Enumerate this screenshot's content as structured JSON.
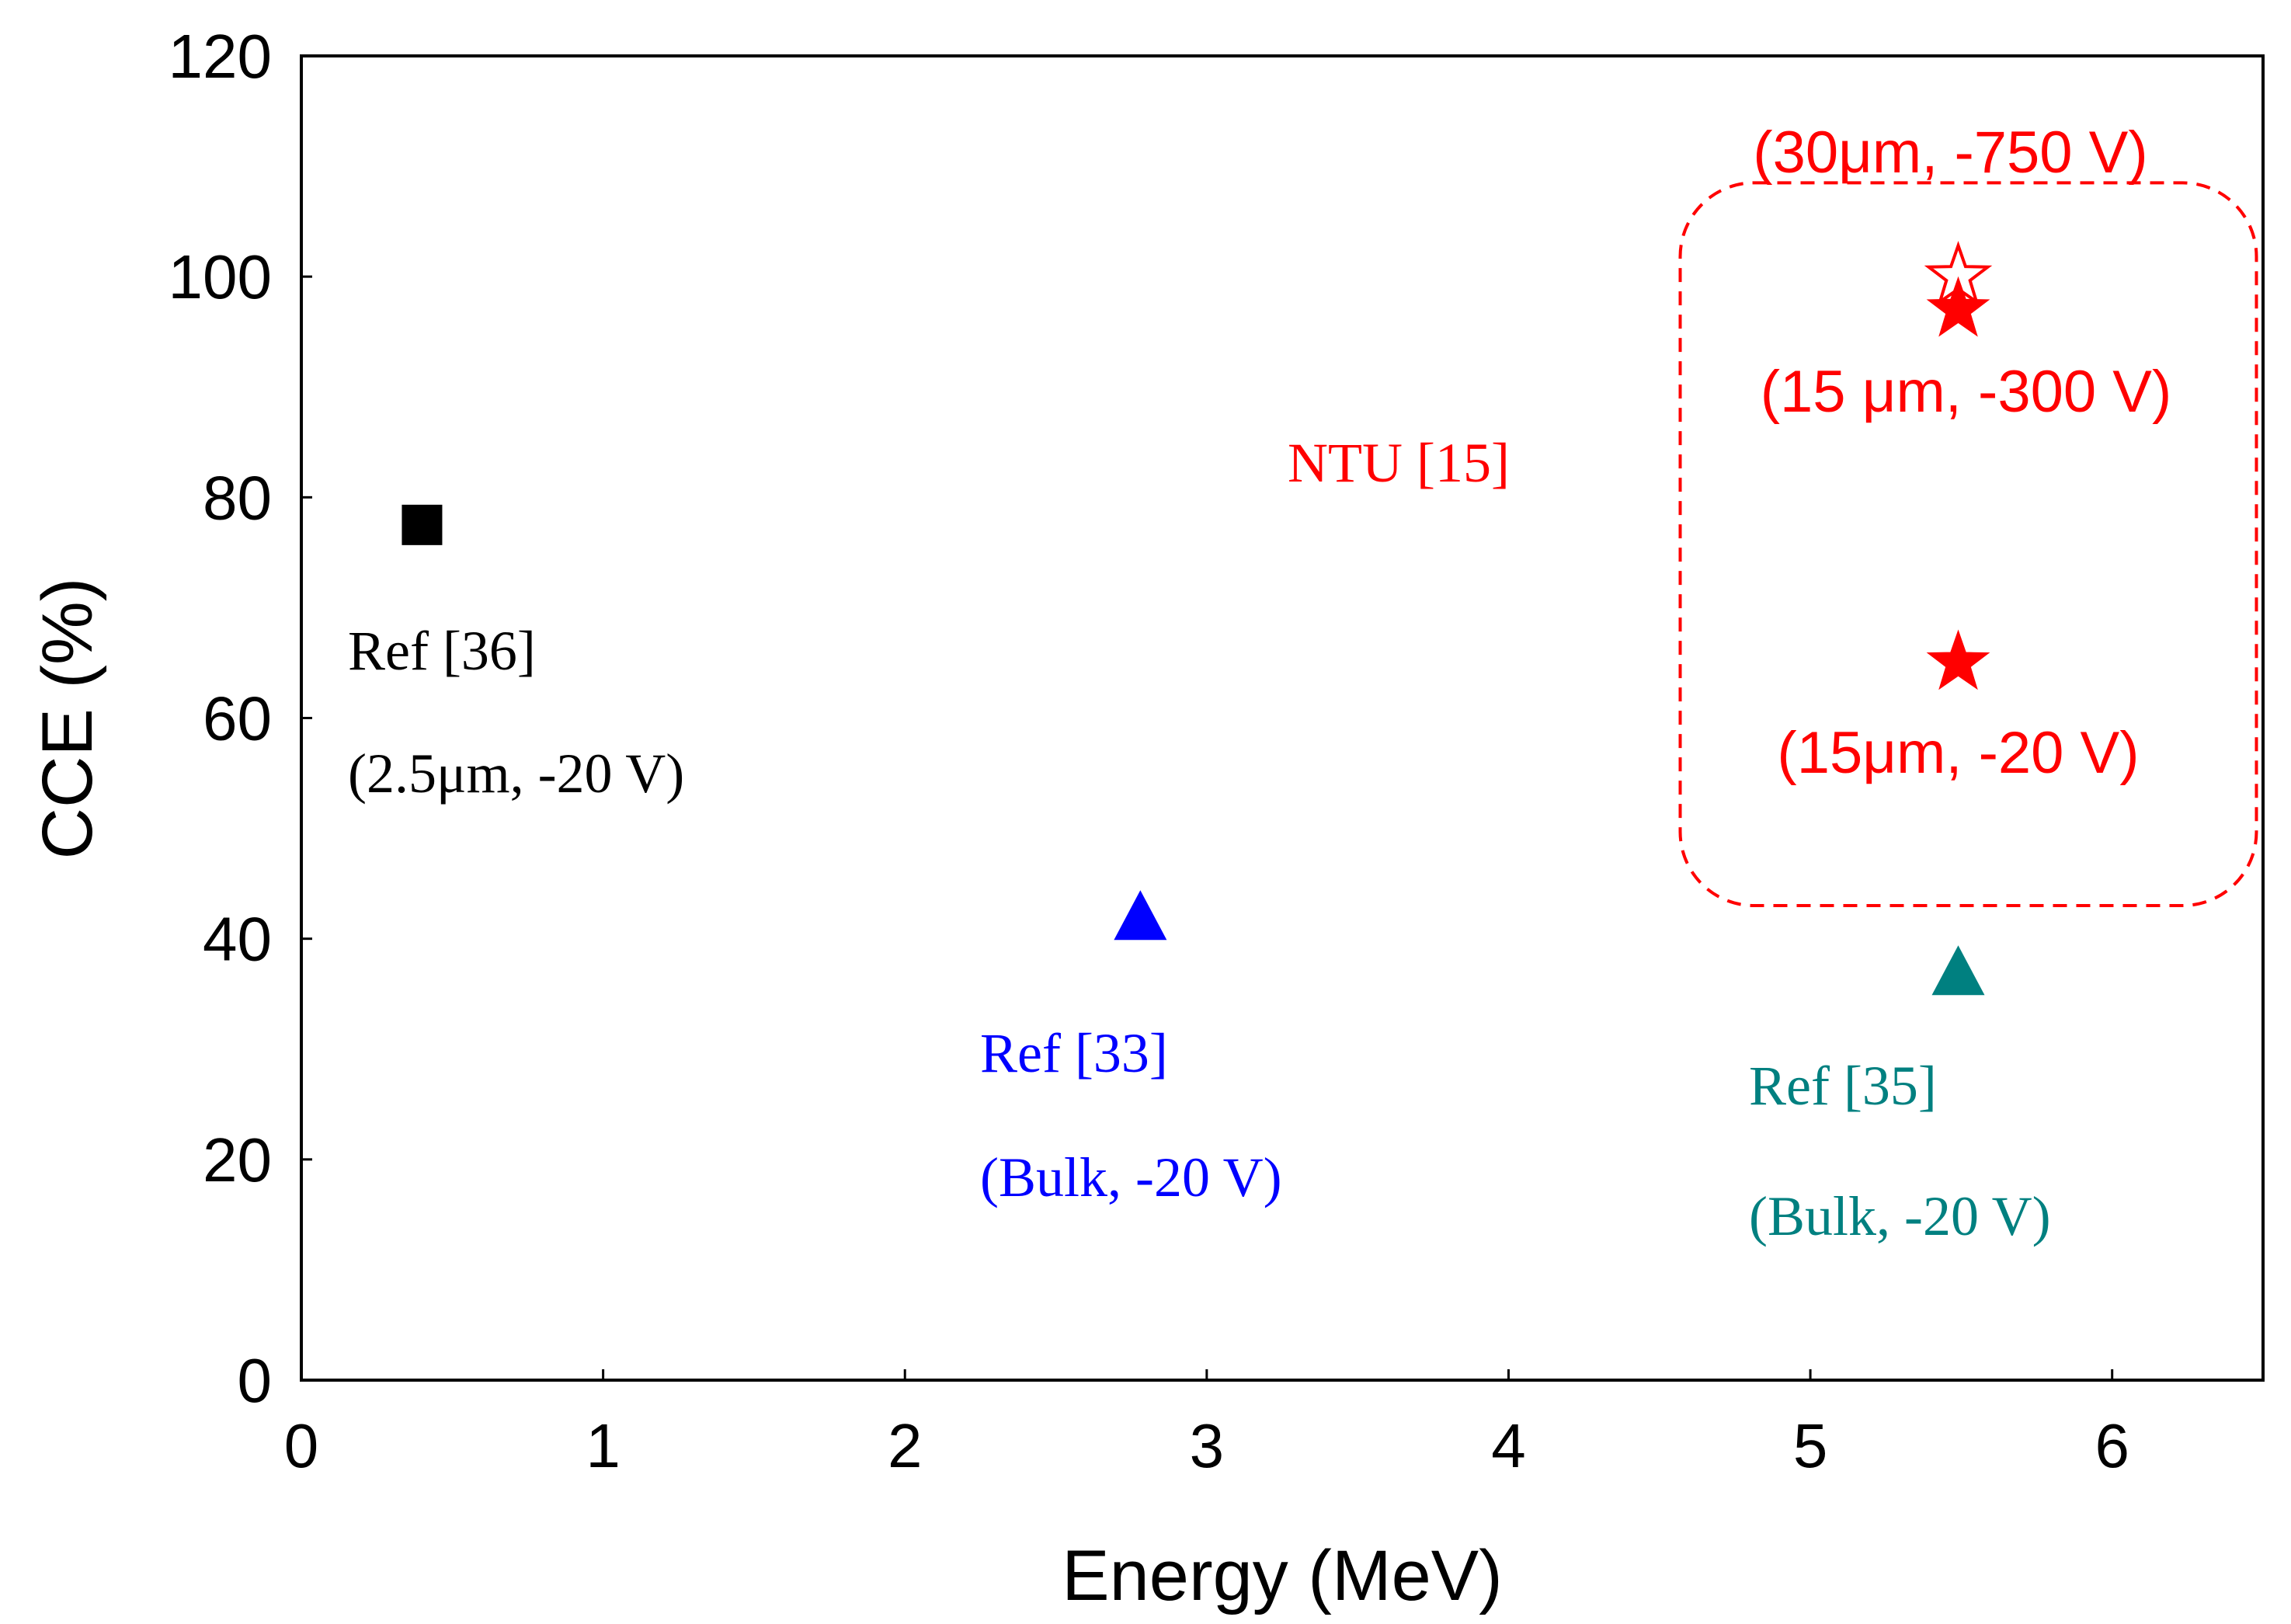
{
  "chart_data": {
    "type": "scatter",
    "title": "",
    "xlabel": "Energy (MeV)",
    "ylabel": "CCE (%)",
    "xlim": [
      0,
      6.5
    ],
    "ylim": [
      0,
      120
    ],
    "xticks": [
      0,
      1,
      2,
      3,
      4,
      5,
      6
    ],
    "yticks": [
      0,
      20,
      40,
      60,
      80,
      100,
      120
    ],
    "grid": false,
    "colors": {
      "ref36": "#000000",
      "ref33": "#0000ff",
      "ref35": "#008080",
      "ntu": "#ff0000"
    },
    "series": [
      {
        "name": "Ref [36]",
        "marker": "square",
        "color": "#000000",
        "points": [
          {
            "x": 0.4,
            "y": 77.5
          }
        ],
        "labels": [
          "Ref [36]",
          "(2.5μm, -20 V)"
        ]
      },
      {
        "name": "Ref [33]",
        "marker": "triangle",
        "color": "#0000ff",
        "points": [
          {
            "x": 2.78,
            "y": 42
          }
        ],
        "labels": [
          "Ref [33]",
          "(Bulk, -20 V)"
        ]
      },
      {
        "name": "Ref [35]",
        "marker": "triangle",
        "color": "#008080",
        "points": [
          {
            "x": 5.49,
            "y": 37
          }
        ],
        "labels": [
          "Ref [35]",
          "(Bulk, -20 V)"
        ]
      },
      {
        "name": "NTU [15]",
        "marker": "star",
        "color": "#ff0000",
        "points": [
          {
            "x": 5.49,
            "y": 100,
            "filled": false,
            "label": "(30μm, -750 V)"
          },
          {
            "x": 5.49,
            "y": 97,
            "filled": true,
            "label": "(15 μm, -300 V)"
          },
          {
            "x": 5.49,
            "y": 65,
            "filled": true,
            "label": "(15μm, -20 V)"
          }
        ],
        "group_label": "NTU [15]"
      }
    ]
  }
}
